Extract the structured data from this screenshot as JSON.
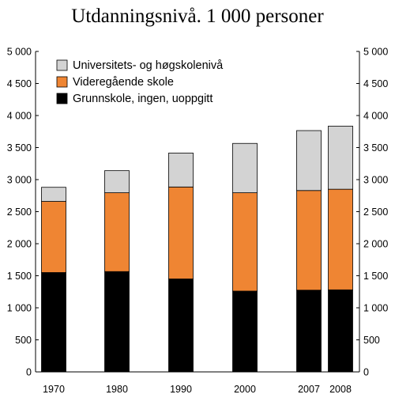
{
  "chart_data": {
    "type": "bar",
    "stacked": true,
    "title": "Utdanningsnivå. 1 000 personer",
    "xlabel": "",
    "ylabel": "",
    "categories": [
      "1970",
      "1980",
      "1990",
      "2000",
      "2007",
      "2008"
    ],
    "series": [
      {
        "name": "Grunnskole, ingen, uoppgitt",
        "color": "#000000",
        "values": [
          1550,
          1565,
          1450,
          1260,
          1275,
          1280
        ]
      },
      {
        "name": "Videregående skole",
        "color": "#ef8533",
        "values": [
          1110,
          1230,
          1435,
          1535,
          1555,
          1570
        ]
      },
      {
        "name": "Universitets- og høgskolenivå",
        "color": "#d3d3d3",
        "values": [
          220,
          345,
          530,
          770,
          935,
          985
        ]
      }
    ],
    "ylim": [
      0,
      5000
    ],
    "yticks": [
      0,
      500,
      1000,
      1500,
      2000,
      2500,
      3000,
      3500,
      4000,
      4500,
      5000
    ],
    "ytick_labels": [
      "0",
      "500",
      "1 000",
      "1 500",
      "2 000",
      "2 500",
      "3 000",
      "3 500",
      "4 000",
      "4 500",
      "5 000"
    ],
    "secondary_y_axis": true,
    "grid": false,
    "legend_position": "top-left"
  }
}
